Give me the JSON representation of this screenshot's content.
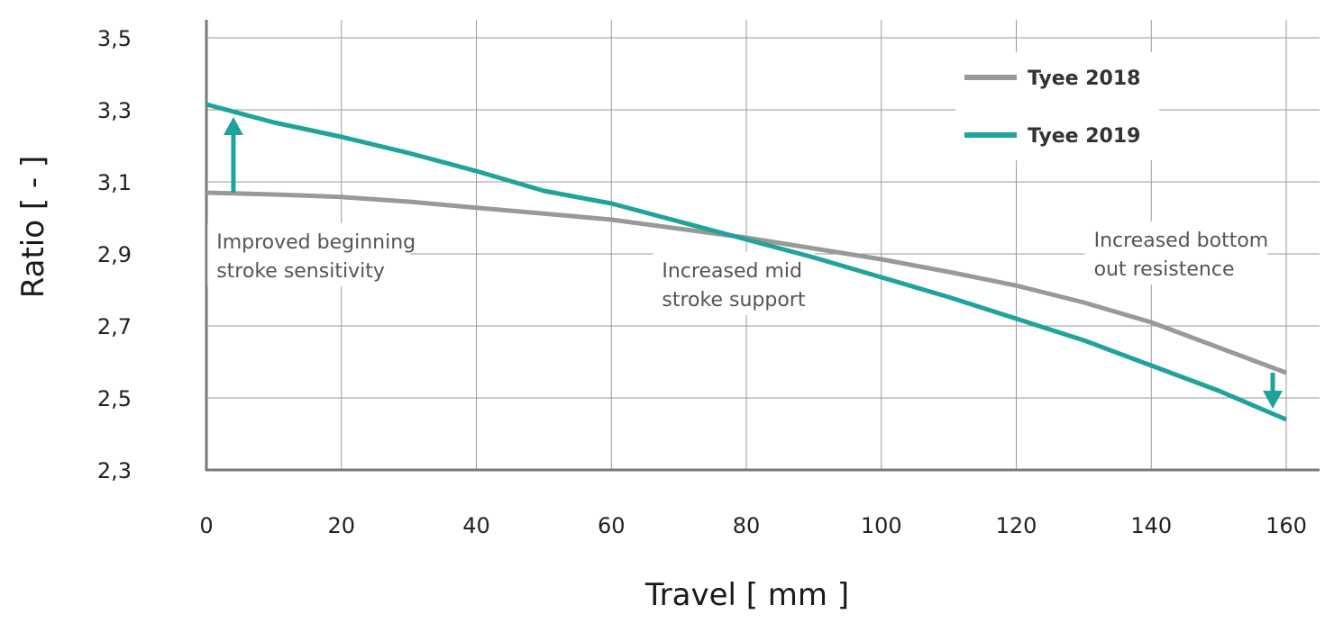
{
  "chart_data": {
    "type": "line",
    "xlabel": "Travel [ mm ]",
    "ylabel": "Ratio [ - ]",
    "xlim": [
      0,
      160
    ],
    "ylim": [
      2.3,
      3.5
    ],
    "x_ticks": [
      0,
      20,
      40,
      60,
      80,
      100,
      120,
      140,
      160
    ],
    "y_ticks": [
      2.3,
      2.5,
      2.7,
      2.9,
      3.1,
      3.3,
      3.5
    ],
    "x_tick_labels": [
      "0",
      "20",
      "40",
      "60",
      "80",
      "100",
      "120",
      "140",
      "160"
    ],
    "y_tick_labels": [
      "2,3",
      "2,5",
      "2,7",
      "2,9",
      "3,1",
      "3,3",
      "3,5"
    ],
    "grid": true,
    "legend_position": "top-right",
    "series": [
      {
        "name": "Tyee 2018",
        "color": "#999999",
        "x": [
          0,
          10,
          20,
          30,
          40,
          50,
          60,
          70,
          80,
          90,
          100,
          110,
          120,
          130,
          140,
          150,
          160
        ],
        "y": [
          3.07,
          3.065,
          3.058,
          3.045,
          3.028,
          3.012,
          2.995,
          2.97,
          2.945,
          2.915,
          2.885,
          2.85,
          2.812,
          2.765,
          2.71,
          2.64,
          2.57
        ]
      },
      {
        "name": "Tyee 2019",
        "color": "#1fa39b",
        "x": [
          0,
          10,
          20,
          30,
          40,
          50,
          60,
          70,
          80,
          90,
          100,
          110,
          120,
          130,
          140,
          150,
          160
        ],
        "y": [
          3.315,
          3.265,
          3.225,
          3.18,
          3.13,
          3.075,
          3.04,
          2.99,
          2.94,
          2.89,
          2.835,
          2.78,
          2.72,
          2.66,
          2.59,
          2.52,
          2.44
        ]
      }
    ],
    "annotations": [
      {
        "lines": [
          "Improved beginning",
          "stroke sensitivity"
        ],
        "x": 1.5,
        "y": 2.915
      },
      {
        "lines": [
          "Increased mid",
          "stroke support"
        ],
        "x": 67.5,
        "y": 2.835
      },
      {
        "lines": [
          "Increased bottom",
          "out resistence"
        ],
        "x": 131.5,
        "y": 2.92
      }
    ],
    "arrows": [
      {
        "direction": "up",
        "x": 4,
        "from": 3.07,
        "to": 3.28,
        "color": "#1fa39b"
      },
      {
        "direction": "down",
        "x": 158,
        "from": 2.57,
        "to": 2.47,
        "color": "#1fa39b"
      }
    ]
  }
}
